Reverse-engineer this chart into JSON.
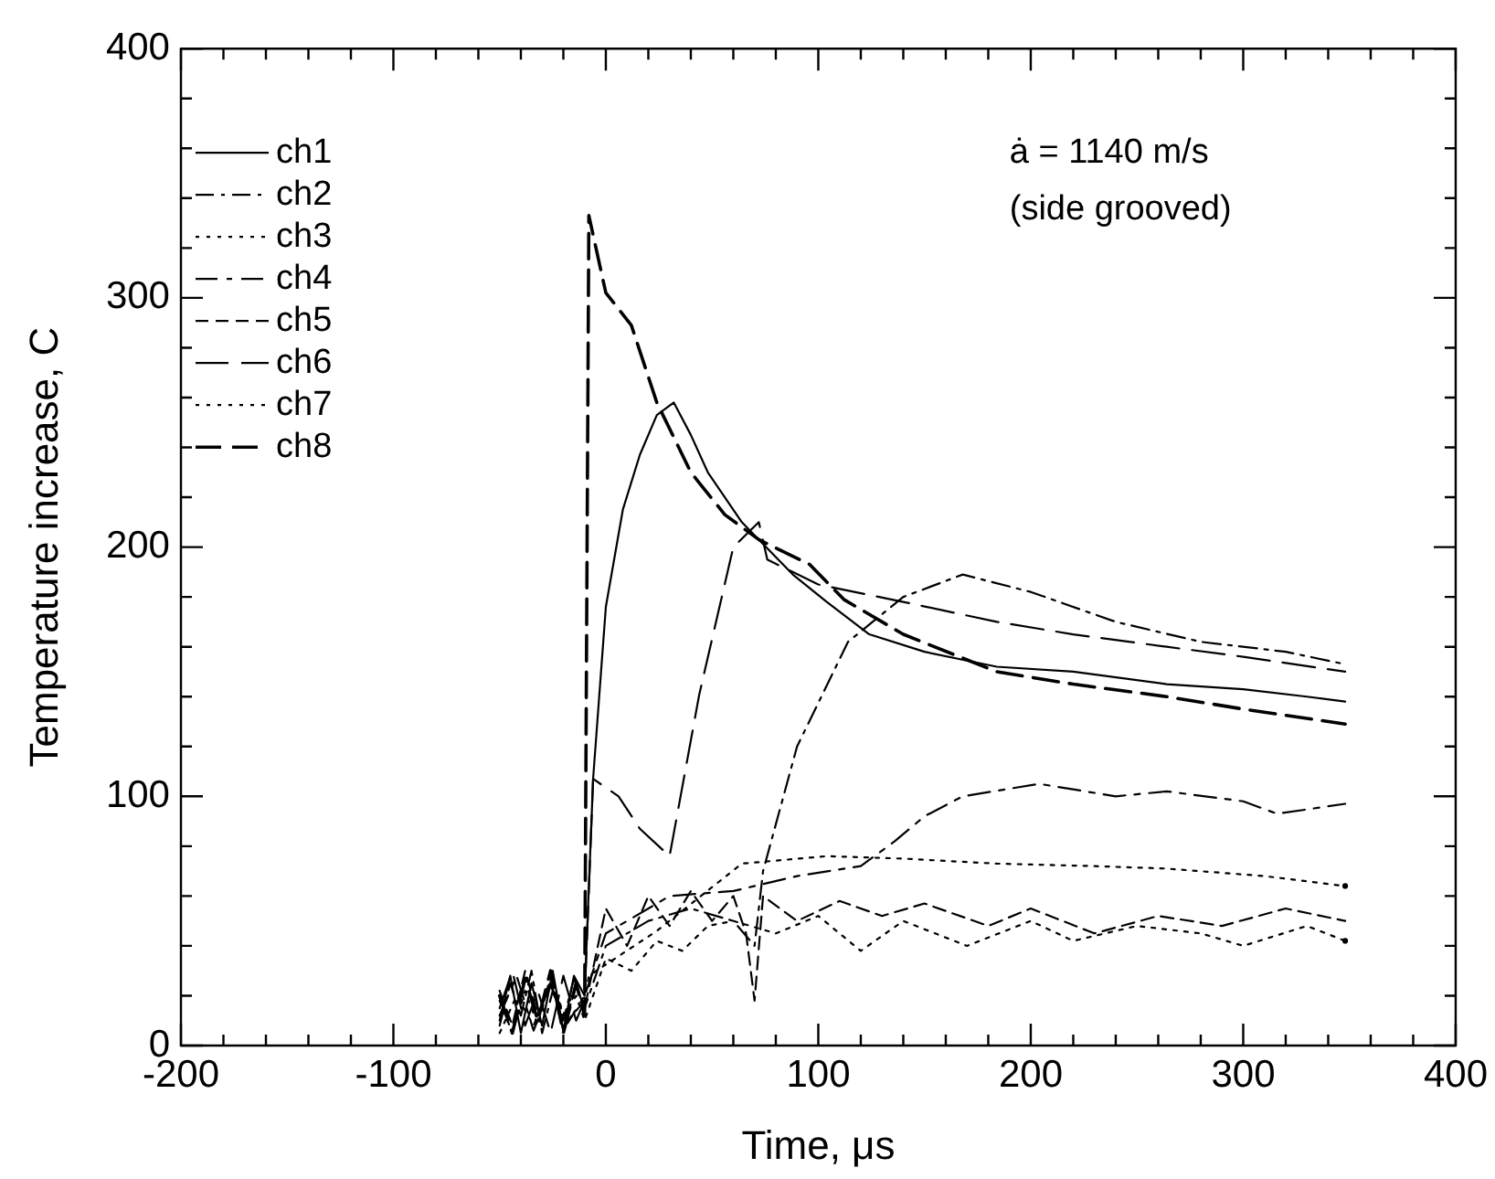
{
  "chart_data": {
    "type": "line",
    "xlabel": "Time, μs",
    "ylabel": "Temperature increase, C",
    "legend": "top left",
    "annotations": [
      "ȧ = 1140 m/s",
      "(side grooved)"
    ],
    "xlim": [
      -200,
      400
    ],
    "xticks": [
      -200,
      {
        "value": -180,
        "label": null
      },
      {
        "value": -160,
        "label": null
      },
      {
        "value": -140,
        "label": null
      },
      {
        "value": -120,
        "label": null
      },
      -100,
      {
        "value": -80,
        "label": null
      },
      {
        "value": -60,
        "label": null
      },
      {
        "value": -40,
        "label": null
      },
      {
        "value": -20,
        "label": null
      },
      0,
      {
        "value": 20,
        "label": null
      },
      {
        "value": 40,
        "label": null
      },
      {
        "value": 60,
        "label": null
      },
      {
        "value": 80,
        "label": null
      },
      100,
      {
        "value": 120,
        "label": null
      },
      {
        "value": 140,
        "label": null
      },
      {
        "value": 160,
        "label": null
      },
      {
        "value": 180,
        "label": null
      },
      200,
      {
        "value": 220,
        "label": null
      },
      {
        "value": 240,
        "label": null
      },
      {
        "value": 260,
        "label": null
      },
      {
        "value": 280,
        "label": null
      },
      300,
      {
        "value": 320,
        "label": null
      },
      {
        "value": 340,
        "label": null
      },
      {
        "value": 360,
        "label": null
      },
      {
        "value": 380,
        "label": null
      },
      400
    ],
    "ylim": [
      0,
      400
    ],
    "yticks": [
      0,
      {
        "value": 20,
        "label": null
      },
      {
        "value": 40,
        "label": null
      },
      {
        "value": 60,
        "label": null
      },
      {
        "value": 80,
        "label": null
      },
      100,
      {
        "value": 120,
        "label": null
      },
      {
        "value": 140,
        "label": null
      },
      {
        "value": 160,
        "label": null
      },
      {
        "value": 180,
        "label": null
      },
      200,
      {
        "value": 220,
        "label": null
      },
      {
        "value": 240,
        "label": null
      },
      {
        "value": 260,
        "label": null
      },
      {
        "value": 280,
        "label": null
      },
      300,
      {
        "value": 320,
        "label": null
      },
      {
        "value": 340,
        "label": null
      },
      {
        "value": 360,
        "label": null
      },
      {
        "value": 380,
        "label": null
      },
      400
    ],
    "series": [
      {
        "name": "ch1",
        "color": "#000000",
        "line_style": "solid",
        "x": [
          -50,
          -45,
          -40,
          -35,
          -30,
          -25,
          -20,
          -15,
          -10,
          -6,
          0,
          8,
          16,
          24,
          32,
          40,
          48,
          56,
          64,
          72,
          88,
          104,
          124,
          150,
          184,
          220,
          264,
          300,
          330,
          348
        ],
        "values": [
          10,
          28,
          5,
          25,
          8,
          30,
          6,
          28,
          20,
          107,
          176,
          215,
          237,
          253,
          258,
          245,
          230,
          220,
          210,
          203,
          189,
          178,
          165,
          158,
          152,
          150,
          145,
          143,
          140,
          138
        ]
      },
      {
        "name": "ch2",
        "color": "#000000",
        "line_style": "dashed",
        "x": [
          -50,
          -45,
          -40,
          -35,
          -30,
          -25,
          -20,
          -15,
          -10,
          0,
          20,
          40,
          60,
          70,
          74,
          90,
          114,
          140,
          168,
          200,
          240,
          280,
          320,
          348
        ],
        "values": [
          8,
          25,
          12,
          30,
          5,
          22,
          10,
          27,
          15,
          40,
          50,
          55,
          50,
          40,
          70,
          120,
          162,
          180,
          189,
          182,
          170,
          162,
          158,
          153
        ]
      },
      {
        "name": "ch3",
        "color": "#000000",
        "line_style": "dotted",
        "x": [
          -50,
          -42,
          -34,
          -26,
          -18,
          -10,
          -8,
          24,
          64,
          104,
          140,
          184,
          230,
          264,
          310,
          348
        ],
        "values": [
          5,
          20,
          8,
          25,
          10,
          18,
          28,
          46,
          73,
          76,
          75,
          73,
          72,
          71,
          68,
          64
        ]
      },
      {
        "name": "ch4",
        "color": "#000000",
        "line_style": "dashed",
        "x": [
          -50,
          -42,
          -34,
          -26,
          -18,
          -10,
          0,
          30,
          60,
          90,
          120,
          136,
          150,
          168,
          204,
          240,
          264,
          300,
          316,
          348
        ],
        "values": [
          12,
          28,
          6,
          24,
          9,
          20,
          45,
          60,
          62,
          68,
          72,
          82,
          92,
          100,
          105,
          100,
          102,
          98,
          93,
          97
        ]
      },
      {
        "name": "ch5",
        "color": "#000000",
        "line_style": "dashed",
        "x": [
          -50,
          -44,
          -38,
          -32,
          -26,
          -20,
          -14,
          -10,
          0,
          10,
          20,
          30,
          40,
          50,
          60,
          66,
          70,
          74,
          90,
          110,
          130,
          150,
          180,
          200,
          230,
          260,
          290,
          320,
          348
        ],
        "values": [
          22,
          8,
          30,
          12,
          26,
          6,
          24,
          15,
          55,
          40,
          60,
          48,
          62,
          50,
          60,
          45,
          18,
          60,
          50,
          58,
          52,
          57,
          48,
          55,
          45,
          52,
          48,
          55,
          50
        ]
      },
      {
        "name": "ch6",
        "color": "#000000",
        "line_style": "dashed",
        "x": [
          -50,
          -44,
          -38,
          -32,
          -26,
          -20,
          -14,
          -10,
          -6,
          6,
          16,
          30,
          44,
          60,
          72,
          76,
          100,
          140,
          184,
          220,
          264,
          300,
          348
        ],
        "values": [
          15,
          30,
          8,
          22,
          5,
          28,
          10,
          18,
          107,
          100,
          87,
          76,
          141,
          200,
          210,
          195,
          185,
          178,
          170,
          165,
          160,
          156,
          150
        ]
      },
      {
        "name": "ch7",
        "color": "#000000",
        "line_style": "dotted",
        "x": [
          -50,
          -44,
          -38,
          -32,
          -26,
          -20,
          -14,
          -10,
          0,
          12,
          24,
          36,
          48,
          60,
          80,
          100,
          120,
          140,
          170,
          200,
          220,
          250,
          280,
          300,
          330,
          348
        ],
        "values": [
          18,
          5,
          22,
          8,
          28,
          12,
          20,
          10,
          35,
          30,
          42,
          38,
          48,
          50,
          45,
          52,
          38,
          50,
          40,
          50,
          42,
          48,
          45,
          40,
          48,
          42
        ]
      },
      {
        "name": "ch8",
        "color": "#000000",
        "line_style": "dashed",
        "x": [
          -50,
          -44,
          -38,
          -32,
          -26,
          -20,
          -14,
          -10,
          -8,
          0,
          12,
          24,
          40,
          56,
          72,
          96,
          112,
          140,
          184,
          220,
          264,
          300,
          348
        ],
        "values": [
          20,
          5,
          27,
          10,
          30,
          5,
          25,
          12,
          333,
          302,
          289,
          258,
          230,
          213,
          203,
          193,
          179,
          165,
          150,
          145,
          140,
          135,
          129
        ]
      }
    ]
  }
}
